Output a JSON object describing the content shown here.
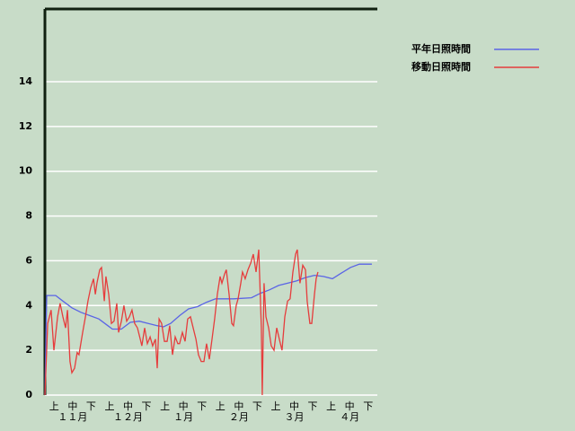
{
  "chart_data": {
    "type": "line",
    "ylim": [
      0,
      17.25
    ],
    "yticks": [
      0,
      2,
      4,
      6,
      8,
      10,
      12,
      14
    ],
    "grid": true,
    "xlim": [
      0,
      181.4
    ],
    "dekads": [
      "上",
      "中",
      "下",
      "上",
      "中",
      "下",
      "上",
      "中",
      "下",
      "上",
      "中",
      "下",
      "上",
      "中",
      "下",
      "上",
      "中",
      "下"
    ],
    "months": [
      "１１月",
      "１２月",
      "１月",
      "２月",
      "３月",
      "４月"
    ],
    "series": [
      {
        "name": "平年日照時間",
        "color": "#5a64e6",
        "x": [
          0,
          1,
          5.9,
          9.8,
          14.7,
          19.6,
          24.5,
          29.4,
          34.3,
          36.8,
          41.7,
          46.6,
          51.5,
          56.4,
          61.3,
          64.7,
          68.6,
          73.5,
          78.4,
          83.3,
          88.2,
          93.1,
          102.9,
          112.7,
          117.6,
          122.5,
          127.5,
          132.4,
          137.3,
          142.2,
          147.1,
          152,
          156.9,
          161.8,
          166.7,
          171.6,
          178.4
        ],
        "values": [
          0,
          4.45,
          4.45,
          4.2,
          3.9,
          3.7,
          3.55,
          3.4,
          3.1,
          2.95,
          2.95,
          3.25,
          3.3,
          3.2,
          3.1,
          3.05,
          3.2,
          3.55,
          3.85,
          3.95,
          4.15,
          4.3,
          4.3,
          4.35,
          4.55,
          4.7,
          4.9,
          5.0,
          5.1,
          5.25,
          5.35,
          5.3,
          5.2,
          5.45,
          5.7,
          5.85,
          5.85
        ]
      },
      {
        "name": "移動日照時間",
        "color": "#e63c3c",
        "x": [
          0,
          1.5,
          3.4,
          4.9,
          6.9,
          8.3,
          9.8,
          11.3,
          12.3,
          13.7,
          14.7,
          16.2,
          17.6,
          18.6,
          20.6,
          22.1,
          23.5,
          25,
          26.5,
          27.5,
          28.4,
          29.9,
          30.9,
          32.4,
          33.3,
          34.8,
          36.3,
          37.7,
          39.2,
          40.2,
          41.7,
          43.1,
          44.6,
          46.1,
          47.5,
          49,
          50.5,
          52,
          52.9,
          54.4,
          55.9,
          57.4,
          58.8,
          60.3,
          61.3,
          62.3,
          63.7,
          65.2,
          66.7,
          68.1,
          69.6,
          71.1,
          72.5,
          73.5,
          75,
          76.5,
          77.9,
          79.4,
          80.9,
          82.4,
          83.8,
          85.3,
          86.8,
          88.2,
          89.7,
          91.2,
          92.6,
          94.1,
          95.6,
          96.6,
          98,
          99,
          100.5,
          102,
          102.9,
          104.4,
          105.4,
          106.9,
          107.8,
          109.3,
          110.8,
          112.3,
          113.7,
          115.2,
          116.7,
          118.1,
          118.6,
          119.6,
          120.6,
          122.1,
          123.5,
          125,
          126.5,
          127.9,
          129.4,
          130.9,
          132.4,
          133.8,
          135.3,
          136.8,
          137.7,
          139.2,
          140.7,
          142.2,
          143.1,
          144.6,
          145.6,
          147.1,
          148,
          149
        ],
        "values": [
          0,
          3.2,
          3.8,
          2.0,
          3.5,
          4.1,
          3.5,
          3.0,
          3.8,
          1.5,
          1.0,
          1.2,
          1.9,
          1.8,
          2.8,
          3.5,
          4.2,
          4.8,
          5.2,
          4.5,
          5.0,
          5.6,
          5.7,
          4.2,
          5.3,
          4.5,
          3.2,
          3.3,
          4.1,
          2.8,
          3.3,
          4.0,
          3.3,
          3.5,
          3.8,
          3.2,
          3.0,
          2.5,
          2.2,
          3.0,
          2.3,
          2.6,
          2.2,
          2.5,
          1.2,
          3.4,
          3.2,
          2.4,
          2.4,
          3.1,
          1.8,
          2.6,
          2.3,
          2.3,
          2.8,
          2.4,
          3.4,
          3.5,
          3.0,
          2.5,
          1.8,
          1.5,
          1.5,
          2.3,
          1.6,
          2.5,
          3.4,
          4.5,
          5.3,
          5.0,
          5.4,
          5.6,
          4.5,
          3.2,
          3.1,
          4.0,
          4.3,
          5.0,
          5.5,
          5.2,
          5.6,
          5.9,
          6.3,
          5.5,
          6.5,
          3.0,
          0.0,
          5.0,
          3.5,
          3.0,
          2.2,
          2.0,
          3.0,
          2.5,
          2.0,
          3.5,
          4.2,
          4.3,
          5.5,
          6.3,
          6.5,
          5.0,
          5.8,
          5.6,
          4.2,
          3.2,
          3.2,
          4.5,
          5.2,
          5.5
        ]
      }
    ]
  }
}
